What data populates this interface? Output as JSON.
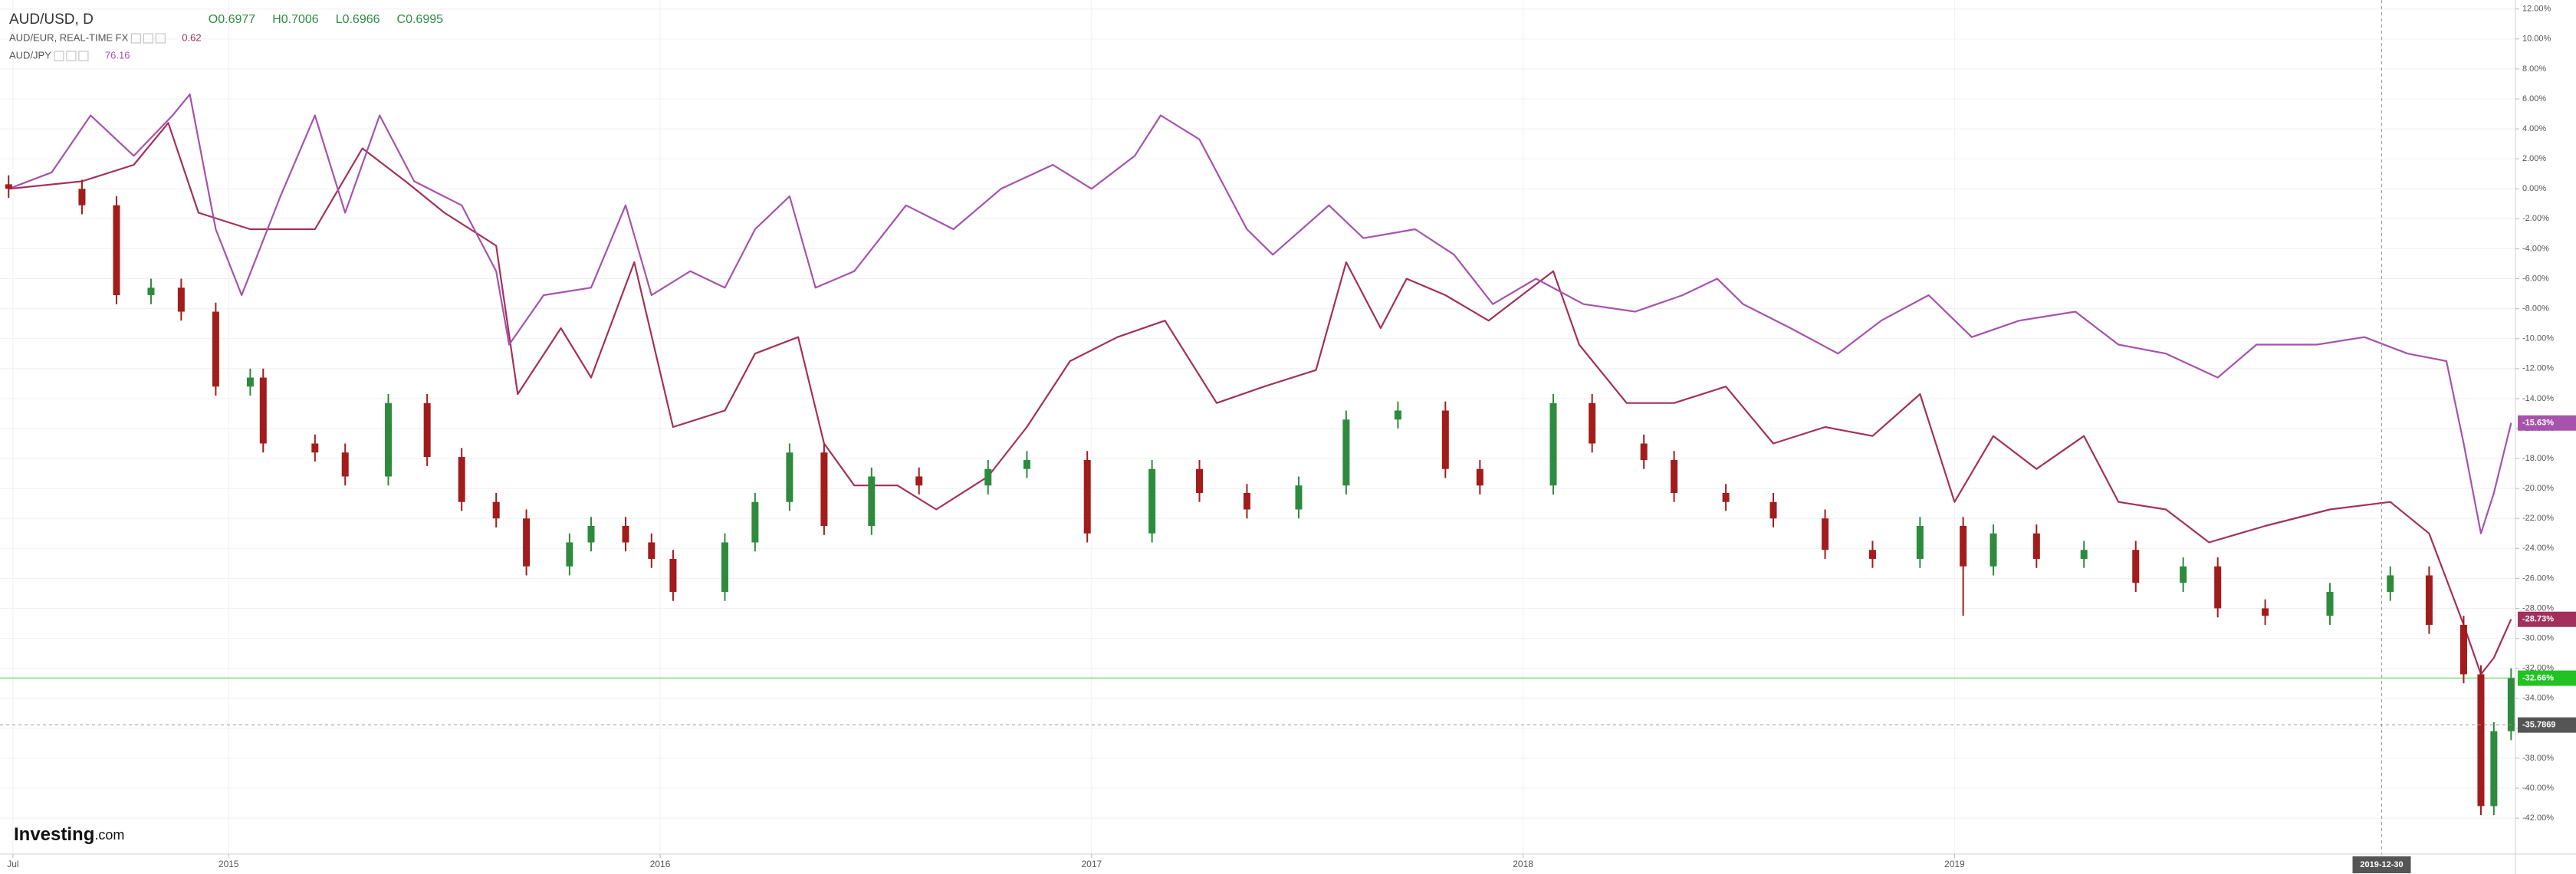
{
  "chart_data": {
    "type": "candlestick",
    "title": "AUD/USD, D",
    "ohlc_labels": [
      "O0.6977",
      "H0.7006",
      "L0.6966",
      "C0.6995"
    ],
    "up_color": "#2e8b3e",
    "down_color": "#a31c1c",
    "x": [
      2014.49,
      2014.66,
      2014.74,
      2014.82,
      2014.89,
      2014.97,
      2015.05,
      2015.08,
      2015.2,
      2015.27,
      2015.37,
      2015.46,
      2015.54,
      2015.62,
      2015.69,
      2015.79,
      2015.84,
      2015.92,
      2015.98,
      2016.03,
      2016.15,
      2016.22,
      2016.3,
      2016.38,
      2016.49,
      2016.6,
      2016.76,
      2016.85,
      2016.99,
      2017.14,
      2017.25,
      2017.36,
      2017.48,
      2017.59,
      2017.71,
      2017.82,
      2017.9,
      2018.07,
      2018.16,
      2018.28,
      2018.35,
      2018.47,
      2018.58,
      2018.7,
      2018.81,
      2018.92,
      2019.02,
      2019.09,
      2019.19,
      2019.3,
      2019.42,
      2019.53,
      2019.61,
      2019.72,
      2019.87,
      2020.01,
      2020.1,
      2020.18,
      2020.22,
      2020.25,
      2020.29
    ],
    "open": [
      0.3,
      0,
      -1.1,
      -7.1,
      -6.6,
      -8.2,
      -13.2,
      -12.6,
      -17,
      -17.6,
      -19.2,
      -14.3,
      -17.9,
      -20.9,
      -22,
      -25.2,
      -23.6,
      -22.5,
      -23.6,
      -24.7,
      -26.9,
      -23.6,
      -20.9,
      -17.6,
      -22.5,
      -19.2,
      -19.8,
      -18.7,
      -18.1,
      -23,
      -18.7,
      -20.3,
      -21.4,
      -19.8,
      -15.4,
      -14.8,
      -18.7,
      -19.8,
      -14.3,
      -17,
      -18.1,
      -20.3,
      -20.9,
      -22,
      -24.1,
      -24.7,
      -22.5,
      -25.2,
      -23,
      -24.7,
      -24.1,
      -26.3,
      -25.2,
      -28,
      -28.5,
      -26.9,
      -25.8,
      -29.1,
      -32.4,
      -41.2,
      -36.2
    ],
    "high": [
      0.9,
      0.6,
      -0.5,
      -6,
      -6,
      -7.6,
      -12,
      -12,
      -16.4,
      -17,
      -13.7,
      -13.7,
      -17.3,
      -20.3,
      -21.4,
      -23,
      -21.9,
      -21.9,
      -23,
      -24.1,
      -23,
      -20.3,
      -17,
      -17,
      -18.6,
      -18.6,
      -18.1,
      -17.5,
      -17.5,
      -18.1,
      -18.1,
      -19.7,
      -19.2,
      -14.8,
      -14.2,
      -14.2,
      -18.1,
      -13.7,
      -13.7,
      -16.4,
      -17.5,
      -19.7,
      -20.3,
      -21.4,
      -23.5,
      -21.9,
      -21.9,
      -22.4,
      -22.4,
      -23.5,
      -23.5,
      -24.6,
      -24.6,
      -27.4,
      -26.3,
      -25.2,
      -25.2,
      -28.5,
      -31.8,
      -35.6,
      -32
    ],
    "low": [
      -0.6,
      -1.7,
      -7.7,
      -7.7,
      -8.8,
      -13.8,
      -13.8,
      -17.6,
      -18.2,
      -19.8,
      -19.8,
      -18.5,
      -21.5,
      -22.6,
      -25.8,
      -25.8,
      -24.2,
      -24.2,
      -25.3,
      -27.5,
      -27.5,
      -24.2,
      -21.5,
      -23.1,
      -23.1,
      -20.4,
      -20.4,
      -19.3,
      -23.6,
      -23.6,
      -20.9,
      -22,
      -22,
      -20.4,
      -16,
      -19.3,
      -20.4,
      -20.4,
      -17.6,
      -18.7,
      -20.9,
      -21.5,
      -22.6,
      -24.7,
      -25.3,
      -25.3,
      -28.5,
      -25.8,
      -25.3,
      -25.3,
      -26.9,
      -26.9,
      -28.6,
      -29.1,
      -29.1,
      -27.5,
      -29.7,
      -33,
      -41.8,
      -41.8,
      -36.8
    ],
    "close": [
      0,
      -1.1,
      -7.1,
      -6.6,
      -8.2,
      -13.2,
      -12.6,
      -17,
      -17.6,
      -19.2,
      -14.3,
      -17.9,
      -20.9,
      -22,
      -25.2,
      -23.6,
      -22.5,
      -23.6,
      -24.7,
      -26.9,
      -23.6,
      -20.9,
      -17.6,
      -22.5,
      -19.2,
      -19.8,
      -18.7,
      -18.1,
      -23,
      -18.7,
      -20.3,
      -21.4,
      -19.8,
      -15.4,
      -14.8,
      -18.7,
      -19.8,
      -14.3,
      -17,
      -18.1,
      -20.3,
      -20.9,
      -22,
      -24.1,
      -24.7,
      -22.5,
      -25.2,
      -23,
      -24.7,
      -24.1,
      -26.3,
      -25.2,
      -28,
      -28.5,
      -26.9,
      -25.8,
      -29.1,
      -32.4,
      -41.2,
      -36.2,
      -32.66
    ],
    "last": {
      "value": -32.66,
      "label": "-32.66%"
    },
    "last_color": "#22c222",
    "overlays": [
      {
        "type": "line",
        "name": "AUD/EUR, REAL-TIME FX",
        "legend_value": 0.62,
        "color": "#a3305c",
        "x": [
          2014.49,
          2014.66,
          2014.78,
          2014.86,
          2014.93,
          2015.05,
          2015.2,
          2015.31,
          2015.41,
          2015.5,
          2015.62,
          2015.67,
          2015.77,
          2015.84,
          2015.94,
          2016.03,
          2016.15,
          2016.22,
          2016.32,
          2016.38,
          2016.45,
          2016.55,
          2016.64,
          2016.76,
          2016.85,
          2016.95,
          2017.06,
          2017.17,
          2017.29,
          2017.4,
          2017.52,
          2017.59,
          2017.67,
          2017.73,
          2017.82,
          2017.92,
          2018.07,
          2018.13,
          2018.24,
          2018.35,
          2018.47,
          2018.58,
          2018.7,
          2018.81,
          2018.92,
          2019.0,
          2019.09,
          2019.19,
          2019.3,
          2019.38,
          2019.49,
          2019.59,
          2019.72,
          2019.87,
          2020.01,
          2020.1,
          2020.18,
          2020.22,
          2020.25,
          2020.29
        ],
        "values": [
          0,
          0.5,
          1.6,
          4.4,
          -1.6,
          -2.7,
          -2.7,
          2.7,
          0.5,
          -1.6,
          -3.8,
          -13.7,
          -9.3,
          -12.6,
          -4.9,
          -15.9,
          -14.8,
          -11,
          -9.9,
          -17,
          -19.8,
          -19.8,
          -21.4,
          -19.2,
          -15.9,
          -11.5,
          -9.9,
          -8.8,
          -14.3,
          -13.2,
          -12.1,
          -4.9,
          -9.3,
          -6,
          -7.1,
          -8.8,
          -5.5,
          -10.4,
          -14.3,
          -14.3,
          -13.2,
          -17,
          -15.9,
          -16.5,
          -13.7,
          -20.9,
          -16.5,
          -18.7,
          -16.5,
          -20.9,
          -21.4,
          -23.6,
          -22.5,
          -21.4,
          -20.9,
          -23,
          -29.1,
          -32.4,
          -31.3,
          -28.73
        ],
        "last": {
          "value": -28.73,
          "label": "-28.73%"
        }
      },
      {
        "type": "line",
        "name": "AUD/JPY",
        "legend_value": 76.16,
        "color": "#a653ad",
        "x": [
          2014.49,
          2014.59,
          2014.68,
          2014.78,
          2014.87,
          2014.91,
          2014.97,
          2015.03,
          2015.12,
          2015.2,
          2015.27,
          2015.35,
          2015.43,
          2015.54,
          2015.62,
          2015.65,
          2015.73,
          2015.84,
          2015.92,
          2015.98,
          2016.07,
          2016.15,
          2016.22,
          2016.3,
          2016.36,
          2016.45,
          2016.57,
          2016.68,
          2016.79,
          2016.91,
          2017.0,
          2017.1,
          2017.16,
          2017.25,
          2017.36,
          2017.42,
          2017.55,
          2017.63,
          2017.75,
          2017.84,
          2017.93,
          2018.03,
          2018.14,
          2018.26,
          2018.37,
          2018.45,
          2018.51,
          2018.62,
          2018.73,
          2018.83,
          2018.94,
          2019.04,
          2019.15,
          2019.28,
          2019.38,
          2019.49,
          2019.61,
          2019.7,
          2019.84,
          2019.95,
          2020.05,
          2020.14,
          2020.18,
          2020.22,
          2020.25,
          2020.29
        ],
        "values": [
          0,
          1.1,
          4.9,
          2.2,
          4.9,
          6.3,
          -2.7,
          -7.1,
          -0.5,
          4.9,
          -1.6,
          4.9,
          0.5,
          -1.1,
          -5.5,
          -10.4,
          -7.1,
          -6.6,
          -1.1,
          -7.1,
          -5.5,
          -6.6,
          -2.7,
          -0.5,
          -6.6,
          -5.5,
          -1.1,
          -2.7,
          0,
          1.6,
          0,
          2.2,
          4.9,
          3.3,
          -2.7,
          -4.4,
          -1.1,
          -3.3,
          -2.7,
          -4.4,
          -7.7,
          -6,
          -7.7,
          -8.2,
          -7.1,
          -6,
          -7.7,
          -9.3,
          -11,
          -8.8,
          -7.1,
          -9.9,
          -8.8,
          -8.2,
          -10.4,
          -11,
          -12.6,
          -10.4,
          -10.4,
          -9.9,
          -11,
          -11.5,
          -17,
          -23,
          -20.3,
          -15.63
        ],
        "last": {
          "value": -15.63,
          "label": "-15.63%"
        }
      }
    ],
    "xlim": [
      2014.47,
      2020.3
    ],
    "xticks": [
      {
        "value": 2014.5,
        "label": "Jul"
      },
      2015,
      2016,
      2017,
      2018,
      2019
    ],
    "ylim": [
      -44.4,
      12.6
    ],
    "yticks": [
      {
        "value": 12,
        "label": "12.00%"
      },
      {
        "value": 10,
        "label": "10.00%"
      },
      {
        "value": 8,
        "label": "8.00%"
      },
      {
        "value": 6,
        "label": "6.00%"
      },
      {
        "value": 4,
        "label": "4.00%"
      },
      {
        "value": 2,
        "label": "2.00%"
      },
      {
        "value": 0,
        "label": "0.00%"
      },
      {
        "value": -2,
        "label": "-2.00%"
      },
      {
        "value": -4,
        "label": "-4.00%"
      },
      {
        "value": -6,
        "label": "-6.00%"
      },
      {
        "value": -8,
        "label": "-8.00%"
      },
      {
        "value": -10,
        "label": "-10.00%"
      },
      {
        "value": -12,
        "label": "-12.00%"
      },
      {
        "value": -14,
        "label": "-14.00%"
      },
      {
        "value": -16,
        "label": "-16.00%"
      },
      {
        "value": -18,
        "label": "-18.00%"
      },
      {
        "value": -20,
        "label": "-20.00%"
      },
      {
        "value": -22,
        "label": "-22.00%"
      },
      {
        "value": -24,
        "label": "-24.00%"
      },
      {
        "value": -26,
        "label": "-26.00%"
      },
      {
        "value": -28,
        "label": "-28.00%"
      },
      {
        "value": -30,
        "label": "-30.00%"
      },
      {
        "value": -32,
        "label": "-32.00%"
      },
      {
        "value": -34,
        "label": "-34.00%"
      },
      {
        "value": -36,
        "label": "-36.00%"
      },
      {
        "value": -38,
        "label": "-38.00%"
      },
      {
        "value": -40,
        "label": "-40.00%"
      },
      {
        "value": -42,
        "label": "-42.00%"
      }
    ],
    "grid": true,
    "crosshair": {
      "x": {
        "value": 2019.99,
        "label": "2019-12-30"
      },
      "y": -35.7869
    },
    "watermark": [
      "Investing",
      ".com"
    ]
  }
}
